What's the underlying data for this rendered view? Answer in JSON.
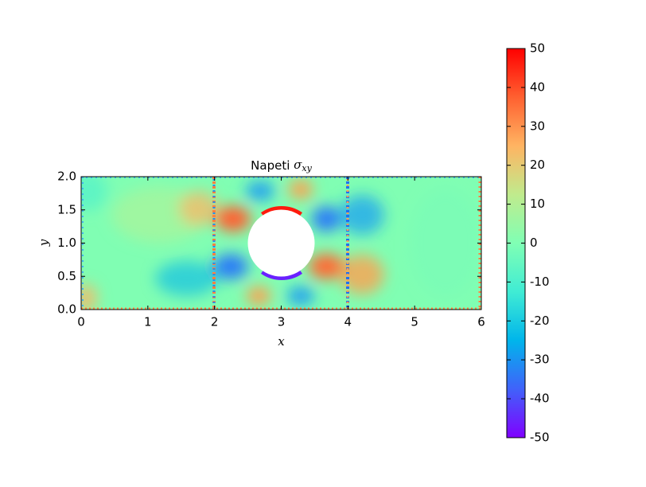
{
  "chart_data": {
    "type": "heatmap",
    "title": {
      "text": "Napeti",
      "symbol": "σ",
      "subscript": "xy"
    },
    "xlabel": "x",
    "ylabel": "y",
    "xlim": [
      0,
      6
    ],
    "ylim": [
      0,
      2
    ],
    "xticks": [
      0,
      1,
      2,
      3,
      4,
      5,
      6
    ],
    "yticks": [
      {
        "value": 0,
        "label": "0.0"
      },
      {
        "value": 0.5,
        "label": "0.5"
      },
      {
        "value": 1,
        "label": "1.0"
      },
      {
        "value": 1.5,
        "label": "1.5"
      },
      {
        "value": 2,
        "label": "2.0"
      }
    ],
    "colorbar": {
      "lim": [
        -50,
        50
      ],
      "ticks": [
        -50,
        -40,
        -30,
        -20,
        -10,
        0,
        10,
        20,
        30,
        40,
        50
      ],
      "colormap": [
        "#8000ff",
        "#4062fa",
        "#00b5eb",
        "#40ecd4",
        "#80ffb4",
        "#c0eb8d",
        "#ffb462",
        "#ff6030",
        "#ff0000"
      ]
    }
  }
}
